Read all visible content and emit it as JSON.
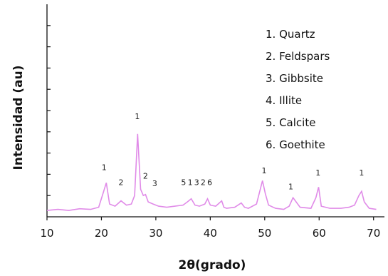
{
  "chart_data": {
    "type": "line",
    "xlabel": "2θ(grado)",
    "ylabel": "Intensidad (au)",
    "xlim": [
      10,
      72
    ],
    "ylim": [
      0,
      10
    ],
    "x_ticks": [
      "10",
      "20",
      "30",
      "40",
      "50",
      "60",
      "70"
    ],
    "y_ticks_unlabeled": [
      1,
      2,
      3,
      4,
      5,
      6,
      7,
      8,
      9
    ],
    "legend_position": "top-right",
    "legend": [
      "1. Quartz",
      "2. Feldspars",
      "3. Gibbsite",
      "4. Illite",
      "5. Calcite",
      "6. Goethite"
    ],
    "series": [
      {
        "color": "#e08be8",
        "x": [
          10,
          12,
          14,
          16,
          18,
          19.5,
          20.3,
          20.9,
          21.5,
          22.5,
          23.6,
          24.6,
          25.5,
          26.1,
          26.65,
          27.2,
          27.7,
          28.1,
          28.6,
          29.5,
          30.5,
          32,
          33.5,
          35,
          35.8,
          36.5,
          37.2,
          38,
          39.0,
          39.5,
          40.0,
          41,
          42.1,
          42.5,
          43,
          44.5,
          45.7,
          46.3,
          47,
          48.5,
          49.6,
          50.1,
          50.7,
          52,
          53.5,
          54.5,
          55.2,
          56.5,
          58.5,
          59.4,
          59.9,
          60.4,
          62,
          64,
          65.5,
          66.5,
          67.3,
          67.8,
          68.3,
          69.2,
          70.5
        ],
        "y": [
          0.3,
          0.35,
          0.3,
          0.38,
          0.35,
          0.45,
          1.1,
          1.6,
          0.6,
          0.5,
          0.75,
          0.55,
          0.6,
          1.0,
          3.9,
          1.3,
          1.0,
          1.05,
          0.7,
          0.6,
          0.5,
          0.45,
          0.5,
          0.55,
          0.7,
          0.85,
          0.55,
          0.5,
          0.6,
          0.85,
          0.55,
          0.5,
          0.75,
          0.45,
          0.4,
          0.45,
          0.65,
          0.45,
          0.4,
          0.6,
          1.7,
          1.1,
          0.55,
          0.4,
          0.35,
          0.5,
          0.9,
          0.45,
          0.4,
          0.9,
          1.4,
          0.5,
          0.4,
          0.4,
          0.45,
          0.55,
          1.0,
          1.2,
          0.7,
          0.4,
          0.35
        ]
      }
    ],
    "peak_labels": [
      {
        "text": "1",
        "x": 20.5,
        "y": 2.2
      },
      {
        "text": "2",
        "x": 23.6,
        "y": 1.5
      },
      {
        "text": "1",
        "x": 26.6,
        "y": 4.6
      },
      {
        "text": "2",
        "x": 28.1,
        "y": 1.8
      },
      {
        "text": "3",
        "x": 29.8,
        "y": 1.45
      },
      {
        "text": "5",
        "x": 35.1,
        "y": 1.5
      },
      {
        "text": "1",
        "x": 36.3,
        "y": 1.5
      },
      {
        "text": "3",
        "x": 37.5,
        "y": 1.5
      },
      {
        "text": "2",
        "x": 38.7,
        "y": 1.5
      },
      {
        "text": "6",
        "x": 39.9,
        "y": 1.5
      },
      {
        "text": "1",
        "x": 49.9,
        "y": 2.05
      },
      {
        "text": "1",
        "x": 54.8,
        "y": 1.3
      },
      {
        "text": "1",
        "x": 59.8,
        "y": 1.95
      },
      {
        "text": "1",
        "x": 67.8,
        "y": 1.95
      }
    ]
  }
}
